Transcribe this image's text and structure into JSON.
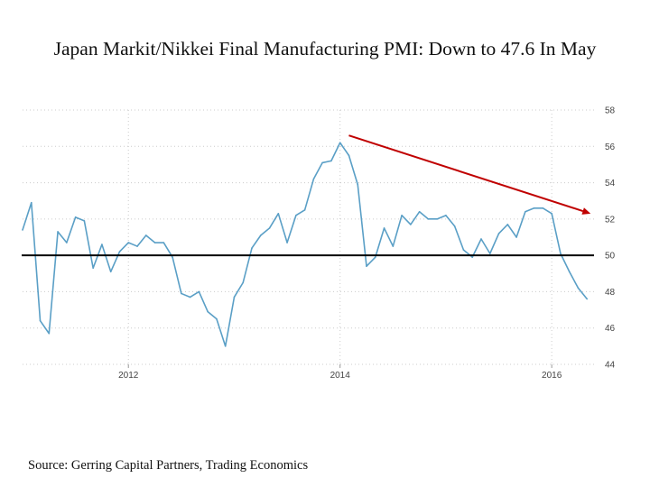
{
  "title": "Japan Markit/Nikkei Final Manufacturing PMI: Down to 47.6 In May",
  "source": "Source: Gerring Capital Partners, Trading Economics",
  "colors": {
    "series": "#5a9fc6",
    "trend_arrow": "#c00000",
    "reference_line": "#000000",
    "grid": "#cccccc"
  },
  "chart_data": {
    "type": "line",
    "title": "Japan Markit/Nikkei Final Manufacturing PMI: Down to 47.6 In May",
    "xlabel": "",
    "ylabel": "",
    "x_start": "2011-01",
    "x_end": "2016-05",
    "xlim": [
      "2011-01",
      "2016-06"
    ],
    "ylim": [
      44,
      58
    ],
    "x_ticks": [
      {
        "date": "2012-01",
        "label": "2012"
      },
      {
        "date": "2014-01",
        "label": "2014"
      },
      {
        "date": "2016-01",
        "label": "2016"
      }
    ],
    "y_ticks": [
      44,
      46,
      48,
      50,
      52,
      54,
      56,
      58
    ],
    "grid": "dotted",
    "y_axis_side": "right",
    "series": [
      {
        "values": [
          51.4,
          52.9,
          46.4,
          45.7,
          51.3,
          50.7,
          52.1,
          51.9,
          49.3,
          50.6,
          49.1,
          50.2,
          50.7,
          50.5,
          51.1,
          50.7,
          50.7,
          49.9,
          47.9,
          47.7,
          48.0,
          46.9,
          46.5,
          45.0,
          47.7,
          48.5,
          50.4,
          51.1,
          51.5,
          52.3,
          50.7,
          52.2,
          52.5,
          54.2,
          55.1,
          55.2,
          56.2,
          55.5,
          53.9,
          49.4,
          49.9,
          51.5,
          50.5,
          52.2,
          51.7,
          52.4,
          52.0,
          52.0,
          52.2,
          51.6,
          50.3,
          49.9,
          50.9,
          50.1,
          51.2,
          51.7,
          51.0,
          52.4,
          52.6,
          52.6,
          52.3,
          50.1,
          49.1,
          48.2,
          47.6
        ]
      }
    ],
    "reference_line": {
      "y": 50
    },
    "annotations": [
      {
        "type": "trend-arrow",
        "from": {
          "date": "2014-02",
          "y": 56.6
        },
        "to": {
          "date": "2016-05",
          "y": 52.3
        }
      }
    ]
  }
}
